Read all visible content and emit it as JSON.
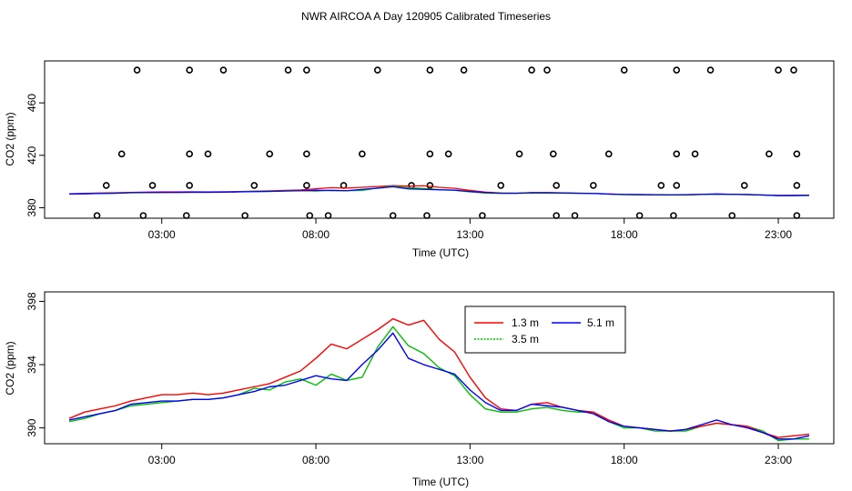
{
  "figure": {
    "title": "NWR AIRCOA A  Day 120905  Calibrated Timeseries"
  },
  "chart_data": [
    {
      "id": "top",
      "type": "scatter+line",
      "xlabel": "Time (UTC)",
      "ylabel": "CO2 (ppm)",
      "xlim": [
        -0.8,
        24.8
      ],
      "ylim": [
        372,
        492
      ],
      "x_ticks": [
        3,
        8,
        13,
        18,
        23
      ],
      "x_tick_labels": [
        "03:00",
        "08:00",
        "13:00",
        "18:00",
        "23:00"
      ],
      "y_ticks": [
        380,
        420,
        460
      ],
      "y_tick_labels": [
        "380",
        "420",
        "460"
      ],
      "calibration_points": {
        "top_row": {
          "y": 485,
          "x": [
            2.2,
            3.9,
            5.0,
            7.1,
            7.7,
            10.0,
            11.7,
            12.8,
            15.0,
            15.5,
            18.0,
            19.7,
            20.8,
            23.0,
            23.5
          ]
        },
        "upper_mid_row": {
          "y": 421,
          "x": [
            1.7,
            3.9,
            4.5,
            6.5,
            7.7,
            9.5,
            11.7,
            12.3,
            14.6,
            15.7,
            17.5,
            19.7,
            20.3,
            22.7,
            23.6
          ]
        },
        "lower_mid_row": {
          "y": 397,
          "x": [
            1.2,
            2.7,
            3.9,
            6.0,
            7.7,
            8.9,
            11.1,
            11.7,
            14.0,
            15.8,
            17.0,
            19.2,
            19.7,
            21.9,
            23.6
          ]
        },
        "bottom_row": {
          "y": 374,
          "x": [
            0.9,
            2.4,
            3.8,
            5.7,
            7.8,
            8.4,
            10.5,
            11.6,
            13.4,
            15.8,
            16.4,
            18.5,
            19.6,
            21.5,
            23.6
          ]
        }
      },
      "series": [
        {
          "name": "1.3 m",
          "color": "#ff0000"
        },
        {
          "name": "3.5 m",
          "color": "#00c000"
        },
        {
          "name": "5.1 m",
          "color": "#0000ff"
        }
      ]
    },
    {
      "id": "bottom",
      "type": "line",
      "xlabel": "Time (UTC)",
      "ylabel": "CO2 (ppm)",
      "xlim": [
        -0.8,
        24.8
      ],
      "ylim": [
        389.0,
        398.6
      ],
      "x_ticks": [
        3,
        8,
        13,
        18,
        23
      ],
      "x_tick_labels": [
        "03:00",
        "08:00",
        "13:00",
        "18:00",
        "23:00"
      ],
      "y_ticks": [
        390,
        394,
        398
      ],
      "y_tick_labels": [
        "390",
        "394",
        "398"
      ],
      "x": [
        0.0,
        0.5,
        1.0,
        1.5,
        2.0,
        2.5,
        3.0,
        3.5,
        4.0,
        4.5,
        5.0,
        5.5,
        6.0,
        6.5,
        7.0,
        7.5,
        8.0,
        8.5,
        9.0,
        9.5,
        10.0,
        10.5,
        11.0,
        11.5,
        12.0,
        12.5,
        13.0,
        13.5,
        14.0,
        14.5,
        15.0,
        15.5,
        16.0,
        16.5,
        17.0,
        17.5,
        18.0,
        18.5,
        19.0,
        19.5,
        20.0,
        20.5,
        21.0,
        21.5,
        22.0,
        22.5,
        23.0,
        23.5,
        24.0
      ],
      "series": [
        {
          "name": "1.3 m",
          "color": "#ff0000",
          "values": [
            390.6,
            391.0,
            391.2,
            391.4,
            391.7,
            391.9,
            392.1,
            392.1,
            392.2,
            392.1,
            392.2,
            392.4,
            392.6,
            392.8,
            393.2,
            393.6,
            394.4,
            395.3,
            395.0,
            395.6,
            396.2,
            396.9,
            396.5,
            396.8,
            395.6,
            394.8,
            393.2,
            391.9,
            391.2,
            391.1,
            391.5,
            391.6,
            391.3,
            391.1,
            391.0,
            390.5,
            390.1,
            390.0,
            389.9,
            389.8,
            389.9,
            390.1,
            390.3,
            390.2,
            390.1,
            389.7,
            389.4,
            389.5,
            389.6
          ]
        },
        {
          "name": "3.5 m",
          "color": "#00c000",
          "values": [
            390.4,
            390.6,
            390.9,
            391.1,
            391.4,
            391.5,
            391.6,
            391.7,
            391.8,
            391.8,
            391.9,
            392.1,
            392.5,
            392.4,
            392.9,
            393.1,
            392.7,
            393.4,
            393.0,
            393.2,
            395.1,
            396.4,
            395.2,
            394.7,
            393.8,
            393.3,
            392.1,
            391.2,
            391.0,
            391.0,
            391.2,
            391.3,
            391.1,
            391.0,
            391.0,
            390.4,
            390.0,
            390.0,
            389.8,
            389.8,
            389.8,
            390.1,
            390.3,
            390.2,
            390.1,
            389.8,
            389.2,
            389.3,
            389.3
          ]
        },
        {
          "name": "5.1 m",
          "color": "#0000ff",
          "values": [
            390.5,
            390.7,
            390.9,
            391.1,
            391.5,
            391.6,
            391.7,
            391.7,
            391.8,
            391.8,
            391.9,
            392.1,
            392.3,
            392.6,
            392.7,
            393.0,
            393.3,
            393.1,
            393.0,
            394.0,
            394.9,
            396.0,
            394.4,
            394.0,
            393.7,
            393.4,
            392.4,
            391.6,
            391.1,
            391.1,
            391.5,
            391.4,
            391.3,
            391.1,
            390.9,
            390.4,
            390.1,
            390.0,
            389.9,
            389.8,
            389.9,
            390.2,
            390.5,
            390.2,
            390.0,
            389.7,
            389.3,
            389.3,
            389.5
          ]
        }
      ],
      "legend": {
        "position": "top-center",
        "entries": [
          "1.3 m",
          "5.1 m",
          "3.5 m"
        ]
      }
    }
  ]
}
